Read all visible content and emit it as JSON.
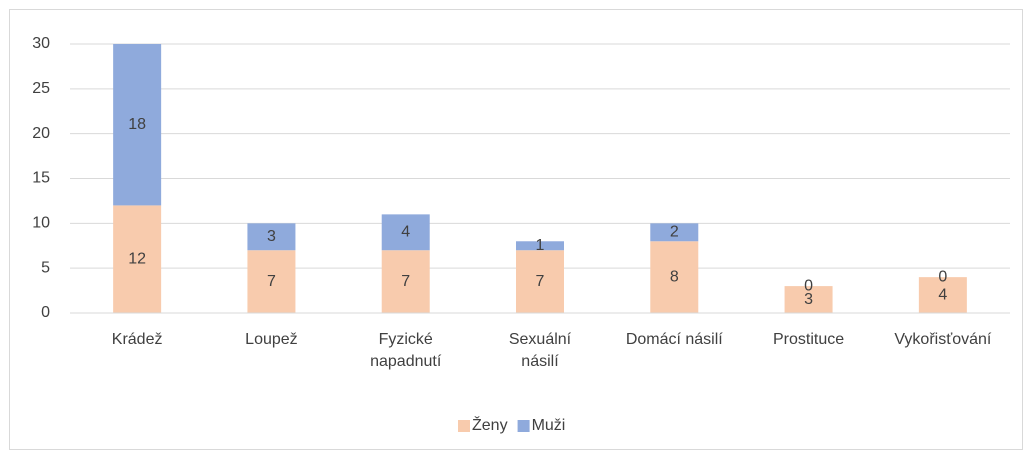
{
  "chart_data": {
    "type": "stacked_bar",
    "categories": [
      "Krádež",
      "Loupež",
      "Fyzické\nnapadnutí",
      "Sexuální\nnásilí",
      "Domácí násilí",
      "Prostituce",
      "Vykořisťování"
    ],
    "series": [
      {
        "name": "Ženy",
        "color": "#f8cbad",
        "values": [
          12,
          7,
          7,
          7,
          8,
          3,
          4
        ]
      },
      {
        "name": "Muži",
        "color": "#8faadc",
        "values": [
          18,
          3,
          4,
          1,
          2,
          0,
          0
        ]
      }
    ],
    "ylim": [
      0,
      30
    ],
    "yticks": [
      0,
      5,
      10,
      15,
      20,
      25,
      30
    ],
    "grid": true,
    "legend": "bottom"
  }
}
